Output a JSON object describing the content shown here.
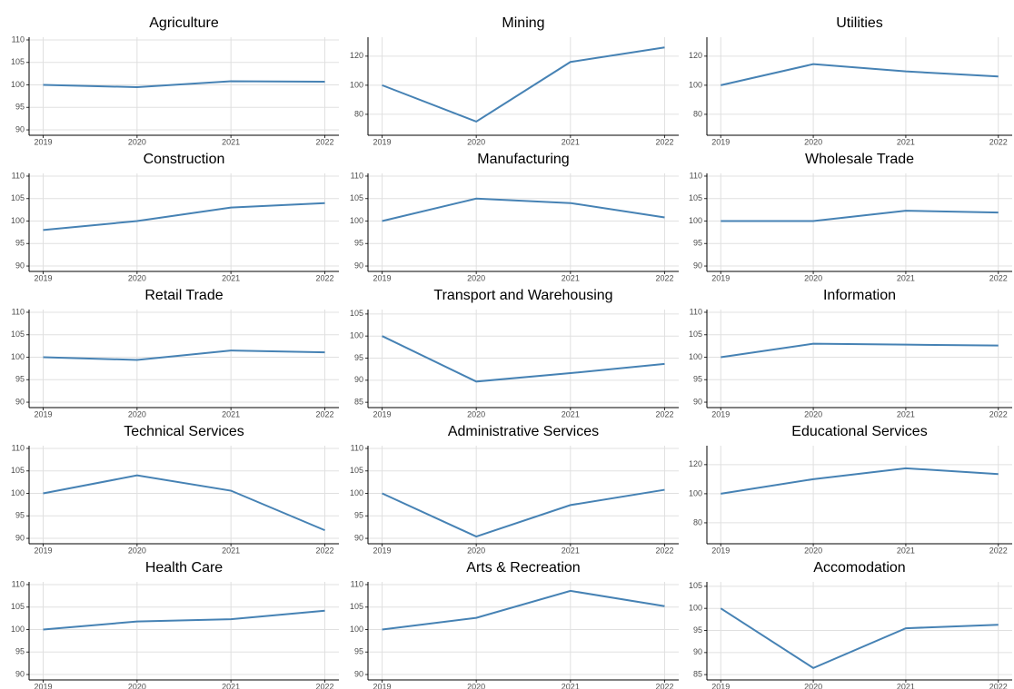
{
  "chart_data": [
    {
      "type": "line",
      "title": "Agriculture",
      "x": [
        2019,
        2020,
        2021,
        2022
      ],
      "values": [
        100,
        99.5,
        100.8,
        100.7
      ],
      "color": "#4682b4",
      "xlim": [
        2018.85,
        2022.15
      ],
      "xticks": [
        2019,
        2020,
        2021,
        2022
      ],
      "ylim": [
        88.8,
        110.6
      ],
      "yticks": [
        90,
        95,
        100,
        105,
        110
      ],
      "grid": true
    },
    {
      "type": "line",
      "title": "Mining",
      "x": [
        2019,
        2020,
        2021,
        2022
      ],
      "values": [
        100,
        75,
        116,
        126
      ],
      "color": "#4682b4",
      "xlim": [
        2018.85,
        2022.15
      ],
      "xticks": [
        2019,
        2020,
        2021,
        2022
      ],
      "ylim": [
        65.6,
        133
      ],
      "yticks": [
        80,
        100,
        120
      ],
      "grid": true
    },
    {
      "type": "line",
      "title": "Utilities",
      "x": [
        2019,
        2020,
        2021,
        2022
      ],
      "values": [
        100,
        114.5,
        109.5,
        106
      ],
      "color": "#4682b4",
      "xlim": [
        2018.85,
        2022.15
      ],
      "xticks": [
        2019,
        2020,
        2021,
        2022
      ],
      "ylim": [
        65.6,
        133
      ],
      "yticks": [
        80,
        100,
        120
      ],
      "grid": true
    },
    {
      "type": "line",
      "title": "Construction",
      "x": [
        2019,
        2020,
        2021,
        2022
      ],
      "values": [
        98,
        100,
        103,
        104
      ],
      "color": "#4682b4",
      "xlim": [
        2018.85,
        2022.15
      ],
      "xticks": [
        2019,
        2020,
        2021,
        2022
      ],
      "ylim": [
        88.8,
        110.6
      ],
      "yticks": [
        90,
        95,
        100,
        105,
        110
      ],
      "grid": true
    },
    {
      "type": "line",
      "title": "Manufacturing",
      "x": [
        2019,
        2020,
        2021,
        2022
      ],
      "values": [
        100,
        105,
        104,
        100.8
      ],
      "color": "#4682b4",
      "xlim": [
        2018.85,
        2022.15
      ],
      "xticks": [
        2019,
        2020,
        2021,
        2022
      ],
      "ylim": [
        88.8,
        110.6
      ],
      "yticks": [
        90,
        95,
        100,
        105,
        110
      ],
      "grid": true
    },
    {
      "type": "line",
      "title": "Wholesale Trade",
      "x": [
        2019,
        2020,
        2021,
        2022
      ],
      "values": [
        100,
        100,
        102.3,
        101.9
      ],
      "color": "#4682b4",
      "xlim": [
        2018.85,
        2022.15
      ],
      "xticks": [
        2019,
        2020,
        2021,
        2022
      ],
      "ylim": [
        88.8,
        110.6
      ],
      "yticks": [
        90,
        95,
        100,
        105,
        110
      ],
      "grid": true
    },
    {
      "type": "line",
      "title": "Retail Trade",
      "x": [
        2019,
        2020,
        2021,
        2022
      ],
      "values": [
        100,
        99.4,
        101.5,
        101.1
      ],
      "color": "#4682b4",
      "xlim": [
        2018.85,
        2022.15
      ],
      "xticks": [
        2019,
        2020,
        2021,
        2022
      ],
      "ylim": [
        88.8,
        110.6
      ],
      "yticks": [
        90,
        95,
        100,
        105,
        110
      ],
      "grid": true
    },
    {
      "type": "line",
      "title": "Transport and Warehousing",
      "x": [
        2019,
        2020,
        2021,
        2022
      ],
      "values": [
        100,
        89.7,
        91.6,
        93.7
      ],
      "color": "#4682b4",
      "xlim": [
        2018.85,
        2022.15
      ],
      "xticks": [
        2019,
        2020,
        2021,
        2022
      ],
      "ylim": [
        83.8,
        106
      ],
      "yticks": [
        85,
        90,
        95,
        100,
        105
      ],
      "grid": true
    },
    {
      "type": "line",
      "title": "Information",
      "x": [
        2019,
        2020,
        2021,
        2022
      ],
      "values": [
        100,
        103,
        102.8,
        102.6
      ],
      "color": "#4682b4",
      "xlim": [
        2018.85,
        2022.15
      ],
      "xticks": [
        2019,
        2020,
        2021,
        2022
      ],
      "ylim": [
        88.8,
        110.6
      ],
      "yticks": [
        90,
        95,
        100,
        105,
        110
      ],
      "grid": true
    },
    {
      "type": "line",
      "title": "Technical Services",
      "x": [
        2019,
        2020,
        2021,
        2022
      ],
      "values": [
        100,
        104,
        100.6,
        91.8
      ],
      "color": "#4682b4",
      "xlim": [
        2018.85,
        2022.15
      ],
      "xticks": [
        2019,
        2020,
        2021,
        2022
      ],
      "ylim": [
        88.8,
        110.6
      ],
      "yticks": [
        90,
        95,
        100,
        105,
        110
      ],
      "grid": true
    },
    {
      "type": "line",
      "title": "Administrative Services",
      "x": [
        2019,
        2020,
        2021,
        2022
      ],
      "values": [
        100,
        90.4,
        97.4,
        100.8
      ],
      "color": "#4682b4",
      "xlim": [
        2018.85,
        2022.15
      ],
      "xticks": [
        2019,
        2020,
        2021,
        2022
      ],
      "ylim": [
        88.8,
        110.6
      ],
      "yticks": [
        90,
        95,
        100,
        105,
        110
      ],
      "grid": true
    },
    {
      "type": "line",
      "title": "Educational Services",
      "x": [
        2019,
        2020,
        2021,
        2022
      ],
      "values": [
        100,
        110,
        117.5,
        113.5
      ],
      "color": "#4682b4",
      "xlim": [
        2018.85,
        2022.15
      ],
      "xticks": [
        2019,
        2020,
        2021,
        2022
      ],
      "ylim": [
        65.6,
        133
      ],
      "yticks": [
        80,
        100,
        120
      ],
      "grid": true
    },
    {
      "type": "line",
      "title": "Health Care",
      "x": [
        2019,
        2020,
        2021,
        2022
      ],
      "values": [
        100,
        101.8,
        102.3,
        104.2
      ],
      "color": "#4682b4",
      "xlim": [
        2018.85,
        2022.15
      ],
      "xticks": [
        2019,
        2020,
        2021,
        2022
      ],
      "ylim": [
        88.8,
        110.6
      ],
      "yticks": [
        90,
        95,
        100,
        105,
        110
      ],
      "grid": true
    },
    {
      "type": "line",
      "title": "Arts & Recreation",
      "x": [
        2019,
        2020,
        2021,
        2022
      ],
      "values": [
        100,
        102.6,
        108.6,
        105.2
      ],
      "color": "#4682b4",
      "xlim": [
        2018.85,
        2022.15
      ],
      "xticks": [
        2019,
        2020,
        2021,
        2022
      ],
      "ylim": [
        88.8,
        110.6
      ],
      "yticks": [
        90,
        95,
        100,
        105,
        110
      ],
      "grid": true
    },
    {
      "type": "line",
      "title": "Accomodation",
      "x": [
        2019,
        2020,
        2021,
        2022
      ],
      "values": [
        100,
        86.5,
        95.5,
        96.3
      ],
      "color": "#4682b4",
      "xlim": [
        2018.85,
        2022.15
      ],
      "xticks": [
        2019,
        2020,
        2021,
        2022
      ],
      "ylim": [
        83.8,
        106
      ],
      "yticks": [
        85,
        90,
        95,
        100,
        105
      ],
      "grid": true
    }
  ]
}
